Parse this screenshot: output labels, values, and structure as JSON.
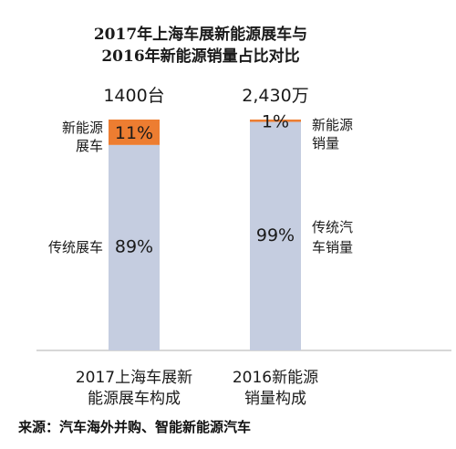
{
  "chart_data": {
    "type": "bar",
    "stacked": true,
    "normalized": true,
    "title": [
      "2017年上海车展新能源展车与",
      "2016年新能源销量占比对比"
    ],
    "categories": [
      [
        "2017上海车展新",
        "能源展车构成"
      ],
      [
        "2016新能源",
        "销量构成"
      ]
    ],
    "totals": [
      "1400台",
      "2,430万"
    ],
    "series": [
      {
        "name": "traditional",
        "values": [
          89,
          99
        ],
        "value_labels": [
          "89%",
          "99%"
        ],
        "color": "#c5cde0"
      },
      {
        "name": "new-energy",
        "values": [
          11,
          1
        ],
        "value_labels": [
          "11%",
          "1%"
        ],
        "color": "#ed7d31"
      }
    ],
    "segment_labels": [
      {
        "new_energy": [
          "新能源",
          "展车"
        ],
        "traditional": [
          "传统展车"
        ]
      },
      {
        "new_energy": [
          "新能源",
          "销量"
        ],
        "traditional": [
          "传统汽",
          "车销量"
        ]
      }
    ],
    "ylim": [
      0,
      100
    ],
    "grid": false
  },
  "source": "来源：汽车海外并购、智能新能源汽车",
  "axis_color": "#bfbfbf"
}
